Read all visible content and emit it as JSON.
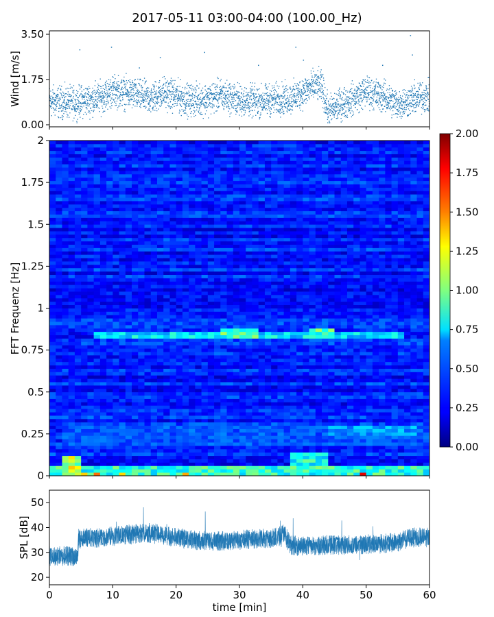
{
  "title": "2017-05-11 03:00-04:00 (100.00_Hz)",
  "colors": {
    "scatter": "#1f77b4",
    "spl": "#1f77b4",
    "axis": "#000000"
  },
  "chart_data": [
    {
      "type": "scatter",
      "name": "wind",
      "ylabel": "Wind [m/s]",
      "xlim": [
        0,
        60
      ],
      "ylim": [
        0,
        3.5
      ],
      "yticks": [
        0,
        1.75,
        3.5
      ],
      "ytick_labels": [
        "0.00",
        "1.75",
        "3.50"
      ],
      "samples_per_minute": 60,
      "mean_profile": {
        "x": [
          0,
          4,
          8,
          10,
          13,
          16,
          18,
          22,
          25,
          27,
          30,
          33,
          36,
          38,
          40,
          42,
          43,
          44,
          46,
          48,
          50,
          53,
          55,
          57,
          59,
          60
        ],
        "y": [
          0.9,
          0.85,
          1.05,
          1.3,
          1.2,
          1.0,
          1.25,
          0.95,
          1.0,
          1.15,
          0.95,
          0.9,
          1.0,
          1.0,
          1.25,
          1.55,
          1.45,
          0.5,
          0.8,
          1.0,
          1.3,
          1.05,
          0.8,
          0.95,
          1.1,
          1.05
        ]
      },
      "spread": 0.45,
      "peaks": [
        {
          "x": 4.8,
          "y": 2.9
        },
        {
          "x": 9.8,
          "y": 3.0
        },
        {
          "x": 17.5,
          "y": 2.6
        },
        {
          "x": 24.5,
          "y": 2.8
        },
        {
          "x": 38.9,
          "y": 3.0
        },
        {
          "x": 40.1,
          "y": 2.5
        },
        {
          "x": 57.0,
          "y": 3.45
        },
        {
          "x": 57.3,
          "y": 2.7
        },
        {
          "x": 52.6,
          "y": 2.3
        },
        {
          "x": 33.0,
          "y": 2.3
        },
        {
          "x": 14.2,
          "y": 2.2
        }
      ]
    },
    {
      "type": "heatmap",
      "name": "spectrogram",
      "ylabel": "FFT Frequenz [Hz]",
      "xlim": [
        0,
        60
      ],
      "ylim": [
        0,
        2
      ],
      "yticks": [
        0,
        0.25,
        0.5,
        0.75,
        1,
        1.25,
        1.5,
        1.75,
        2
      ],
      "ytick_labels": [
        "0",
        "0.25",
        "0.5",
        "0.75",
        "1",
        "1.25",
        "1.5",
        "1.75",
        "2"
      ],
      "colormap": "jet",
      "colorbar": {
        "min": 0,
        "max": 2,
        "ticks": [
          "0.00",
          "0.25",
          "0.50",
          "0.75",
          "1.00",
          "1.25",
          "1.50",
          "1.75",
          "2.00"
        ]
      },
      "time_bins": 60,
      "freq_bins": 100,
      "background_level": 0.3,
      "features": [
        {
          "t0": 0,
          "t1": 60,
          "f0": 0,
          "f1": 0.05,
          "level": 0.9
        },
        {
          "t0": 2,
          "t1": 5,
          "f0": 0,
          "f1": 0.12,
          "level": 1.2
        },
        {
          "t0": 38,
          "t1": 44,
          "f0": 0.02,
          "f1": 0.14,
          "level": 0.85
        },
        {
          "t0": 7,
          "t1": 56,
          "f0": 0.82,
          "f1": 0.86,
          "level": 0.75
        },
        {
          "t0": 27,
          "t1": 33,
          "f0": 0.83,
          "f1": 0.87,
          "level": 0.95
        },
        {
          "t0": 41,
          "t1": 45,
          "f0": 0.83,
          "f1": 0.87,
          "level": 0.95
        },
        {
          "t0": 44,
          "t1": 58,
          "f0": 0.25,
          "f1": 0.29,
          "level": 0.6
        },
        {
          "t0": 2,
          "t1": 60,
          "f0": 0.18,
          "f1": 0.3,
          "level": 0.45
        }
      ]
    },
    {
      "type": "line",
      "name": "spl",
      "ylabel": "SPL [dB]",
      "xlabel": "time [min]",
      "xlim": [
        0,
        60
      ],
      "ylim": [
        17,
        55
      ],
      "yticks": [
        20,
        30,
        40,
        50
      ],
      "xticks": [
        0,
        10,
        20,
        30,
        40,
        50,
        60
      ],
      "profile": {
        "x": [
          0,
          4.5,
          4.6,
          8,
          12,
          15,
          18,
          20,
          23,
          26,
          30,
          33,
          36,
          37,
          38,
          40,
          44,
          48,
          52,
          55,
          57,
          60
        ],
        "y": [
          28.5,
          28.5,
          35.5,
          36,
          37,
          38,
          37,
          36,
          35,
          34.5,
          35,
          35.5,
          36,
          38,
          33,
          32.5,
          33,
          33,
          33.5,
          34,
          36,
          36
        ]
      },
      "band": 4.0
    }
  ]
}
